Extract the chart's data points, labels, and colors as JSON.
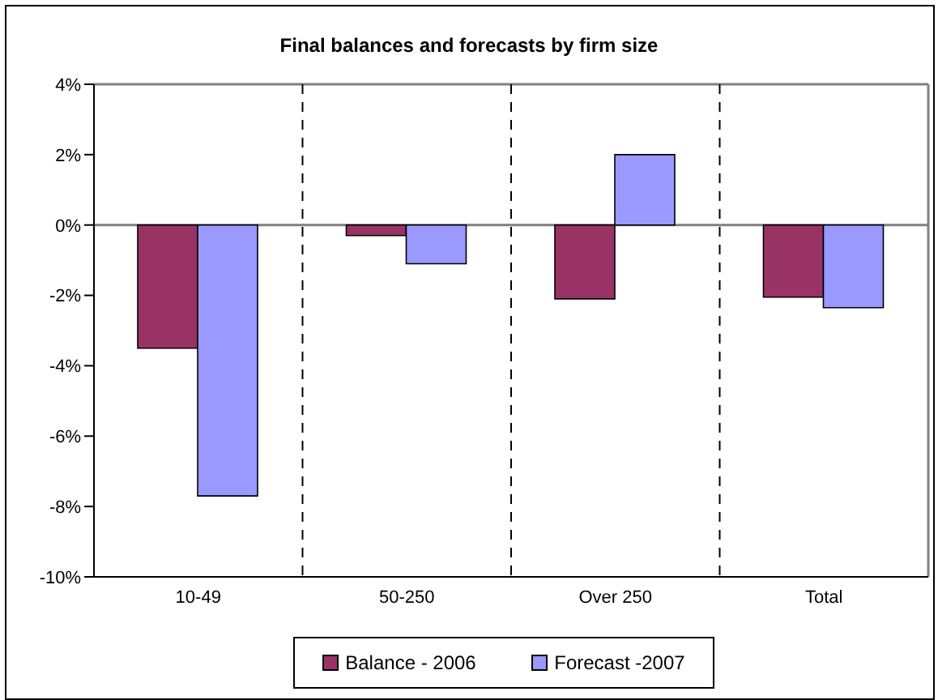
{
  "chart_data": {
    "type": "bar",
    "title": "Final balances and forecasts by firm size",
    "categories": [
      "10-49",
      "50-250",
      "Over 250",
      "Total"
    ],
    "series": [
      {
        "name": "Balance - 2006",
        "color": "#993366",
        "values": [
          -3.5,
          -0.3,
          -2.1,
          -2.05
        ]
      },
      {
        "name": "Forecast -2007",
        "color": "#9999ff",
        "values": [
          -7.7,
          -1.1,
          2.0,
          -2.35
        ]
      }
    ],
    "ylim": [
      -10,
      4
    ],
    "yticks": [
      {
        "value": -10,
        "label": "-10%"
      },
      {
        "value": -8,
        "label": "-8%"
      },
      {
        "value": -6,
        "label": "-6%"
      },
      {
        "value": -4,
        "label": "-4%"
      },
      {
        "value": -2,
        "label": "-2%"
      },
      {
        "value": 0,
        "label": "0%"
      },
      {
        "value": 2,
        "label": "2%"
      },
      {
        "value": 4,
        "label": "4%"
      }
    ],
    "grid": "x",
    "legend": "bottom"
  }
}
